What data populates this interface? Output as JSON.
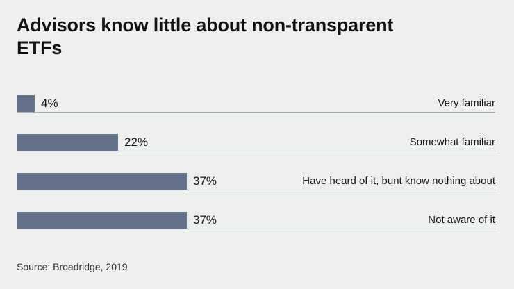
{
  "header": {
    "title": "Advisors know little about non-transparent ETFs"
  },
  "footer": {
    "source": "Source: Broadridge, 2019"
  },
  "colors": {
    "background": "#eef0ee",
    "bar": "#65738a",
    "rule": "#a7abaf",
    "title_text": "#121212",
    "label_text": "#141414"
  },
  "chart_data": {
    "type": "bar",
    "orientation": "horizontal",
    "title": "Advisors know little about non-transparent ETFs",
    "categories": [
      "Very familiar",
      "Somewhat familiar",
      "Have heard of it, bunt know nothing about",
      "Not aware of it"
    ],
    "values": [
      4,
      22,
      37,
      37
    ],
    "value_labels": [
      "4%",
      "22%",
      "37%",
      "37%"
    ],
    "unit": "%",
    "xlim": [
      0,
      100
    ],
    "grid": false,
    "legend": false,
    "value_label_position": "right-of-bar",
    "category_label_position": "right-aligned",
    "source": "Source: Broadridge, 2019"
  }
}
